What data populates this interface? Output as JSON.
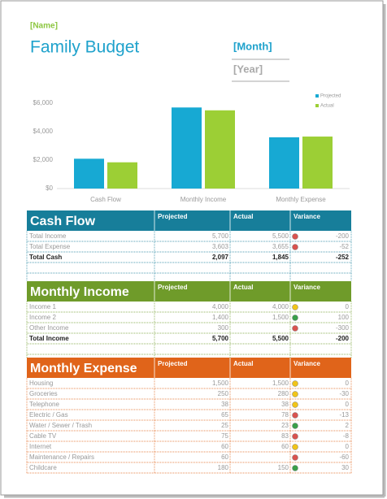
{
  "header": {
    "name": "[Name]",
    "title": "Family Budget",
    "month": "[Month]",
    "year": "[Year]"
  },
  "chart_data": {
    "type": "bar",
    "categories": [
      "Cash Flow",
      "Monthly Income",
      "Monthly Expense"
    ],
    "series": [
      {
        "name": "Projected",
        "color": "#17a9d3",
        "values": [
          2097,
          5700,
          3603
        ]
      },
      {
        "name": "Actual",
        "color": "#9ccf35",
        "values": [
          1845,
          5500,
          3655
        ]
      }
    ],
    "ylim": [
      0,
      6000
    ],
    "yticks": [
      {
        "value": 0,
        "label": "$0"
      },
      {
        "value": 2000,
        "label": "$2,000"
      },
      {
        "value": 4000,
        "label": "$4,000"
      },
      {
        "value": 6000,
        "label": "$6,000"
      }
    ],
    "legend": "top-right"
  },
  "tables": [
    {
      "title": "Cash Flow",
      "color": "#177e9a",
      "columns": [
        "Projected",
        "Actual",
        "Variance"
      ],
      "rows": [
        {
          "label": "Total Income",
          "projected": "5,700",
          "actual": "5,500",
          "variance": "-200",
          "flag": "#d9534f"
        },
        {
          "label": "Total Expense",
          "projected": "3,603",
          "actual": "3,655",
          "variance": "-52",
          "flag": "#d9534f"
        },
        {
          "label": "Total Cash",
          "projected": "2,097",
          "actual": "1,845",
          "variance": "-252",
          "bold": true
        }
      ]
    },
    {
      "title": "Monthly Income",
      "color": "#6f9b2a",
      "columns": [
        "Projected",
        "Actual",
        "Variance"
      ],
      "rows": [
        {
          "label": "Income 1",
          "projected": "4,000",
          "actual": "4,000",
          "variance": "0",
          "flag": "#f0c419"
        },
        {
          "label": "Income 2",
          "projected": "1,400",
          "actual": "1,500",
          "variance": "100",
          "flag": "#3aa04a"
        },
        {
          "label": "Other Income",
          "projected": "300",
          "variance": "-300",
          "flag": "#d9534f"
        },
        {
          "label": "Total Income",
          "projected": "5,700",
          "actual": "5,500",
          "variance": "-200",
          "bold": true
        }
      ]
    },
    {
      "title": "Monthly Expense",
      "color": "#e0641a",
      "columns": [
        "Projected",
        "Actual",
        "Variance"
      ],
      "rows": [
        {
          "label": "Housing",
          "projected": "1,500",
          "actual": "1,500",
          "variance": "0",
          "flag": "#f0c419"
        },
        {
          "label": "Groceries",
          "projected": "250",
          "actual": "280",
          "variance": "-30",
          "flag": "#f0c419"
        },
        {
          "label": "Telephone",
          "projected": "38",
          "actual": "38",
          "variance": "0",
          "flag": "#f0c419"
        },
        {
          "label": "Electric / Gas",
          "projected": "65",
          "actual": "78",
          "variance": "-13",
          "flag": "#d9534f"
        },
        {
          "label": "Water / Sewer / Trash",
          "projected": "25",
          "actual": "23",
          "variance": "2",
          "flag": "#3aa04a"
        },
        {
          "label": "Cable TV",
          "projected": "75",
          "actual": "83",
          "variance": "-8",
          "flag": "#d9534f"
        },
        {
          "label": "Internet",
          "projected": "60",
          "actual": "60",
          "variance": "0",
          "flag": "#f0c419"
        },
        {
          "label": "Maintenance / Repairs",
          "projected": "60",
          "variance": "-60",
          "flag": "#d9534f"
        },
        {
          "label": "Childcare",
          "projected": "180",
          "actual": "150",
          "variance": "30",
          "flag": "#3aa04a"
        }
      ]
    }
  ]
}
